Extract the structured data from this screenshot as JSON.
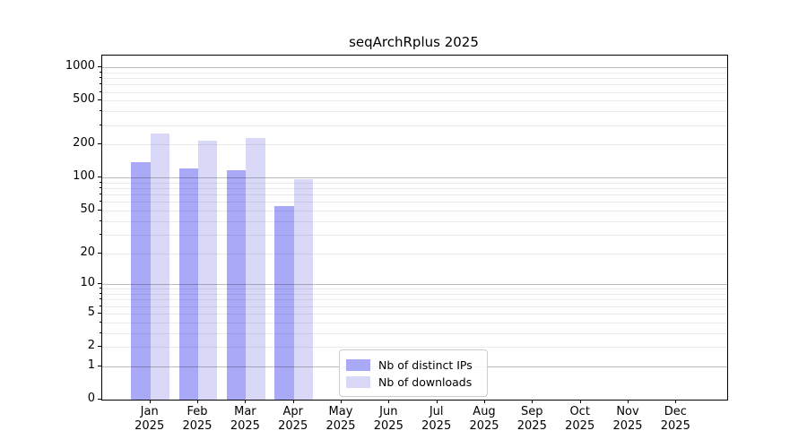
{
  "title": "seqArchRplus 2025",
  "chart_data": {
    "type": "bar",
    "title": "seqArchRplus 2025",
    "yscale": "log1p",
    "ylim": [
      0,
      1277
    ],
    "yticks": [
      1000,
      500,
      200,
      100,
      50,
      20,
      10,
      5,
      2,
      1,
      0
    ],
    "grid": "both",
    "legend_position": "inside-bottom-center",
    "categories": [
      "Jan",
      "Feb",
      "Mar",
      "Apr",
      "May",
      "Jun",
      "Jul",
      "Aug",
      "Sep",
      "Oct",
      "Nov",
      "Dec"
    ],
    "year": "2025",
    "series": [
      {
        "name": "Nb of distinct IPs",
        "color": "#a9a9f7",
        "values": [
          138,
          122,
          117,
          55,
          0,
          0,
          0,
          0,
          0,
          0,
          0,
          0
        ]
      },
      {
        "name": "Nb of downloads",
        "color": "#d9d9f7",
        "values": [
          250,
          218,
          230,
          97,
          0,
          0,
          0,
          0,
          0,
          0,
          0,
          0
        ]
      }
    ]
  },
  "legend": {
    "item1": "Nb of distinct IPs",
    "item2": "Nb of downloads"
  }
}
